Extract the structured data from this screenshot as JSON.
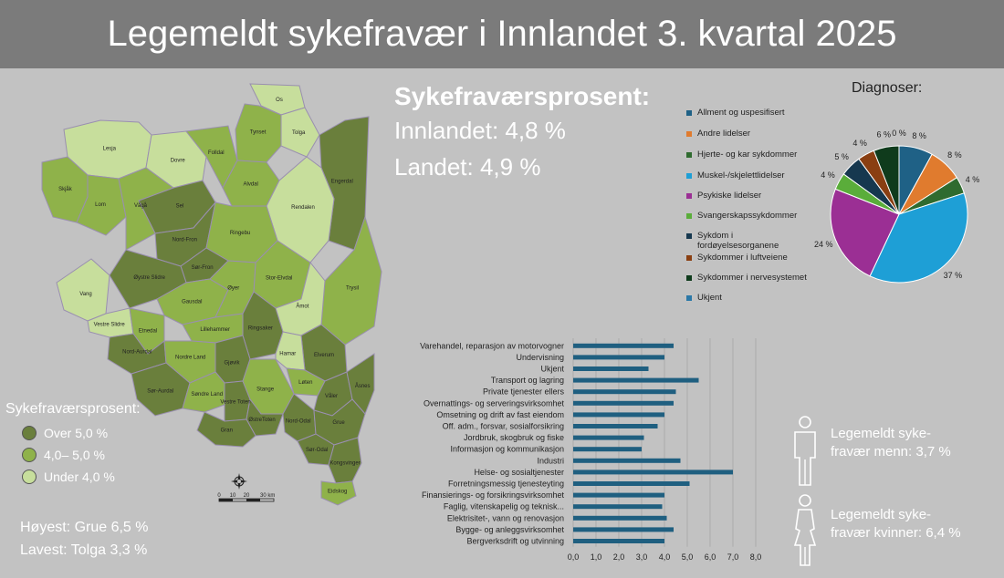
{
  "title": "Legemeldt sykefravær i Innlandet 3. kvartal 2025",
  "stats": {
    "heading": "Sykefraværsprosent:",
    "innlandet": "Innlandet: 4,8 %",
    "landet": "Landet: 4,9 %"
  },
  "map_legend": {
    "title": "Sykefraværsprosent:",
    "items": [
      {
        "label": "Over 5,0 %",
        "color": "#6a7f3c"
      },
      {
        "label": "4,0– 5,0 %",
        "color": "#8fb24a"
      },
      {
        "label": "Under 4,0 %",
        "color": "#c7de9c"
      }
    ]
  },
  "highest": "Høyest: Grue 6,5 %",
  "lowest": "Lavest: Tolga 3,3 %",
  "scale_bar": {
    "ticks": [
      "0",
      "10",
      "20",
      "30 km"
    ]
  },
  "map": {
    "colors": {
      "dark": "#6a7f3c",
      "mid": "#8fb24a",
      "light": "#c7de9c",
      "border": "#9a8fb0"
    },
    "municipalities": [
      {
        "name": "Os",
        "level": "light"
      },
      {
        "name": "Tynset",
        "level": "mid"
      },
      {
        "name": "Tolga",
        "level": "light"
      },
      {
        "name": "Lesja",
        "level": "light"
      },
      {
        "name": "Dovre",
        "level": "light"
      },
      {
        "name": "Folldal",
        "level": "mid"
      },
      {
        "name": "Alvdal",
        "level": "mid"
      },
      {
        "name": "Engerdal",
        "level": "dark"
      },
      {
        "name": "Skjåk",
        "level": "mid"
      },
      {
        "name": "Lom",
        "level": "mid"
      },
      {
        "name": "Sel",
        "level": "dark"
      },
      {
        "name": "Rendalen",
        "level": "light"
      },
      {
        "name": "Vågå",
        "level": "mid"
      },
      {
        "name": "Nord-Fron",
        "level": "dark"
      },
      {
        "name": "Ringebu",
        "level": "mid"
      },
      {
        "name": "Sør-Fron",
        "level": "dark"
      },
      {
        "name": "Stor-Elvdal",
        "level": "mid"
      },
      {
        "name": "Vang",
        "level": "light"
      },
      {
        "name": "Øystre Slidre",
        "level": "dark"
      },
      {
        "name": "Gausdal",
        "level": "mid"
      },
      {
        "name": "Øyer",
        "level": "mid"
      },
      {
        "name": "Trysil",
        "level": "mid"
      },
      {
        "name": "Åmot",
        "level": "light"
      },
      {
        "name": "Vestre Slidre",
        "level": "light"
      },
      {
        "name": "Etnedal",
        "level": "mid"
      },
      {
        "name": "Lillehammer",
        "level": "mid"
      },
      {
        "name": "Nord-Aurdal",
        "level": "dark"
      },
      {
        "name": "Ringsaker",
        "level": "dark"
      },
      {
        "name": "Nordre Land",
        "level": "mid"
      },
      {
        "name": "Gjøvik",
        "level": "dark"
      },
      {
        "name": "Elverum",
        "level": "dark"
      },
      {
        "name": "Hamar",
        "level": "light"
      },
      {
        "name": "Løten",
        "level": "mid"
      },
      {
        "name": "Sør-Aurdal",
        "level": "dark"
      },
      {
        "name": "Søndre Land",
        "level": "mid"
      },
      {
        "name": "Vestre Toten",
        "level": "dark"
      },
      {
        "name": "Stange",
        "level": "mid"
      },
      {
        "name": "Våler",
        "level": "dark"
      },
      {
        "name": "ØstreToten",
        "level": "dark"
      },
      {
        "name": "Åsnes",
        "level": "dark"
      },
      {
        "name": "Gran",
        "level": "dark"
      },
      {
        "name": "Nord-Odal",
        "level": "dark"
      },
      {
        "name": "Grue",
        "level": "dark"
      },
      {
        "name": "Sør-Odal",
        "level": "dark"
      },
      {
        "name": "Kongsvinger",
        "level": "dark"
      },
      {
        "name": "Eidskog",
        "level": "mid"
      }
    ]
  },
  "diagnoser": {
    "title": "Diagnoser:"
  },
  "person_men": {
    "line1": "Legemeldt syke-",
    "line2": "fravær menn: 3,7 %"
  },
  "person_women": {
    "line1": "Legemeldt syke-",
    "line2": "fravær kvinner: 6,4 %"
  },
  "chart_data": [
    {
      "type": "pie",
      "title": "Diagnoser:",
      "categories": [
        "Allment og uspesifisert",
        "Andre lidelser",
        "Hjerte- og kar sykdommer",
        "Muskel-/skjelettlidelser",
        "Psykiske lidelser",
        "Svangerskapssykdommer",
        "Sykdom i fordøyelsesorganene",
        "Sykdommer i luftveiene",
        "Sykdommer i nervesystemet",
        "Ukjent"
      ],
      "values": [
        8,
        8,
        4,
        37,
        24,
        4,
        5,
        4,
        6,
        0
      ],
      "value_labels": [
        "8 %",
        "8 %",
        "4 %",
        "37 %",
        "24 %",
        "4 %",
        "5 %",
        "4 %",
        "6 %",
        "0 %"
      ],
      "colors": [
        "#1f6186",
        "#e07b2e",
        "#2f6b2f",
        "#1e9fd6",
        "#9b2f94",
        "#5aad3a",
        "#16384f",
        "#8a3f12",
        "#0f3b1c",
        "#2b78a7"
      ],
      "legend_position": "left"
    },
    {
      "type": "bar",
      "orientation": "horizontal",
      "categories": [
        "Varehandel, reparasjon av motorvogner",
        "Undervisning",
        "Ukjent",
        "Transport og lagring",
        "Private tjenester ellers",
        "Overnattings- og serveringsvirksomhet",
        "Omsetning og drift av fast eiendom",
        "Off. adm., forsvar, sosialforsikring",
        "Jordbruk, skogbruk og fiske",
        "Informasjon og kommunikasjon",
        "Industri",
        "Helse- og sosialtjenester",
        "Forretningsmessig tjenesteyting",
        "Finansierings- og forsikringsvirksomhet",
        "Faglig, vitenskapelig og teknisk...",
        "Elektrisitet-, vann og renovasjon",
        "Bygge- og anleggsvirksomhet",
        "Bergverksdrift og utvinning"
      ],
      "values": [
        4.4,
        4.0,
        3.3,
        5.5,
        4.5,
        4.4,
        4.0,
        3.7,
        3.1,
        3.0,
        4.7,
        7.0,
        5.1,
        4.0,
        3.9,
        4.1,
        4.4,
        4.0
      ],
      "xlim": [
        0,
        8
      ],
      "x_ticks": [
        "0,0",
        "1,0",
        "2,0",
        "3,0",
        "4,0",
        "5,0",
        "6,0",
        "7,0",
        "8,0"
      ],
      "grid": true,
      "color": "#1f5f80"
    }
  ]
}
